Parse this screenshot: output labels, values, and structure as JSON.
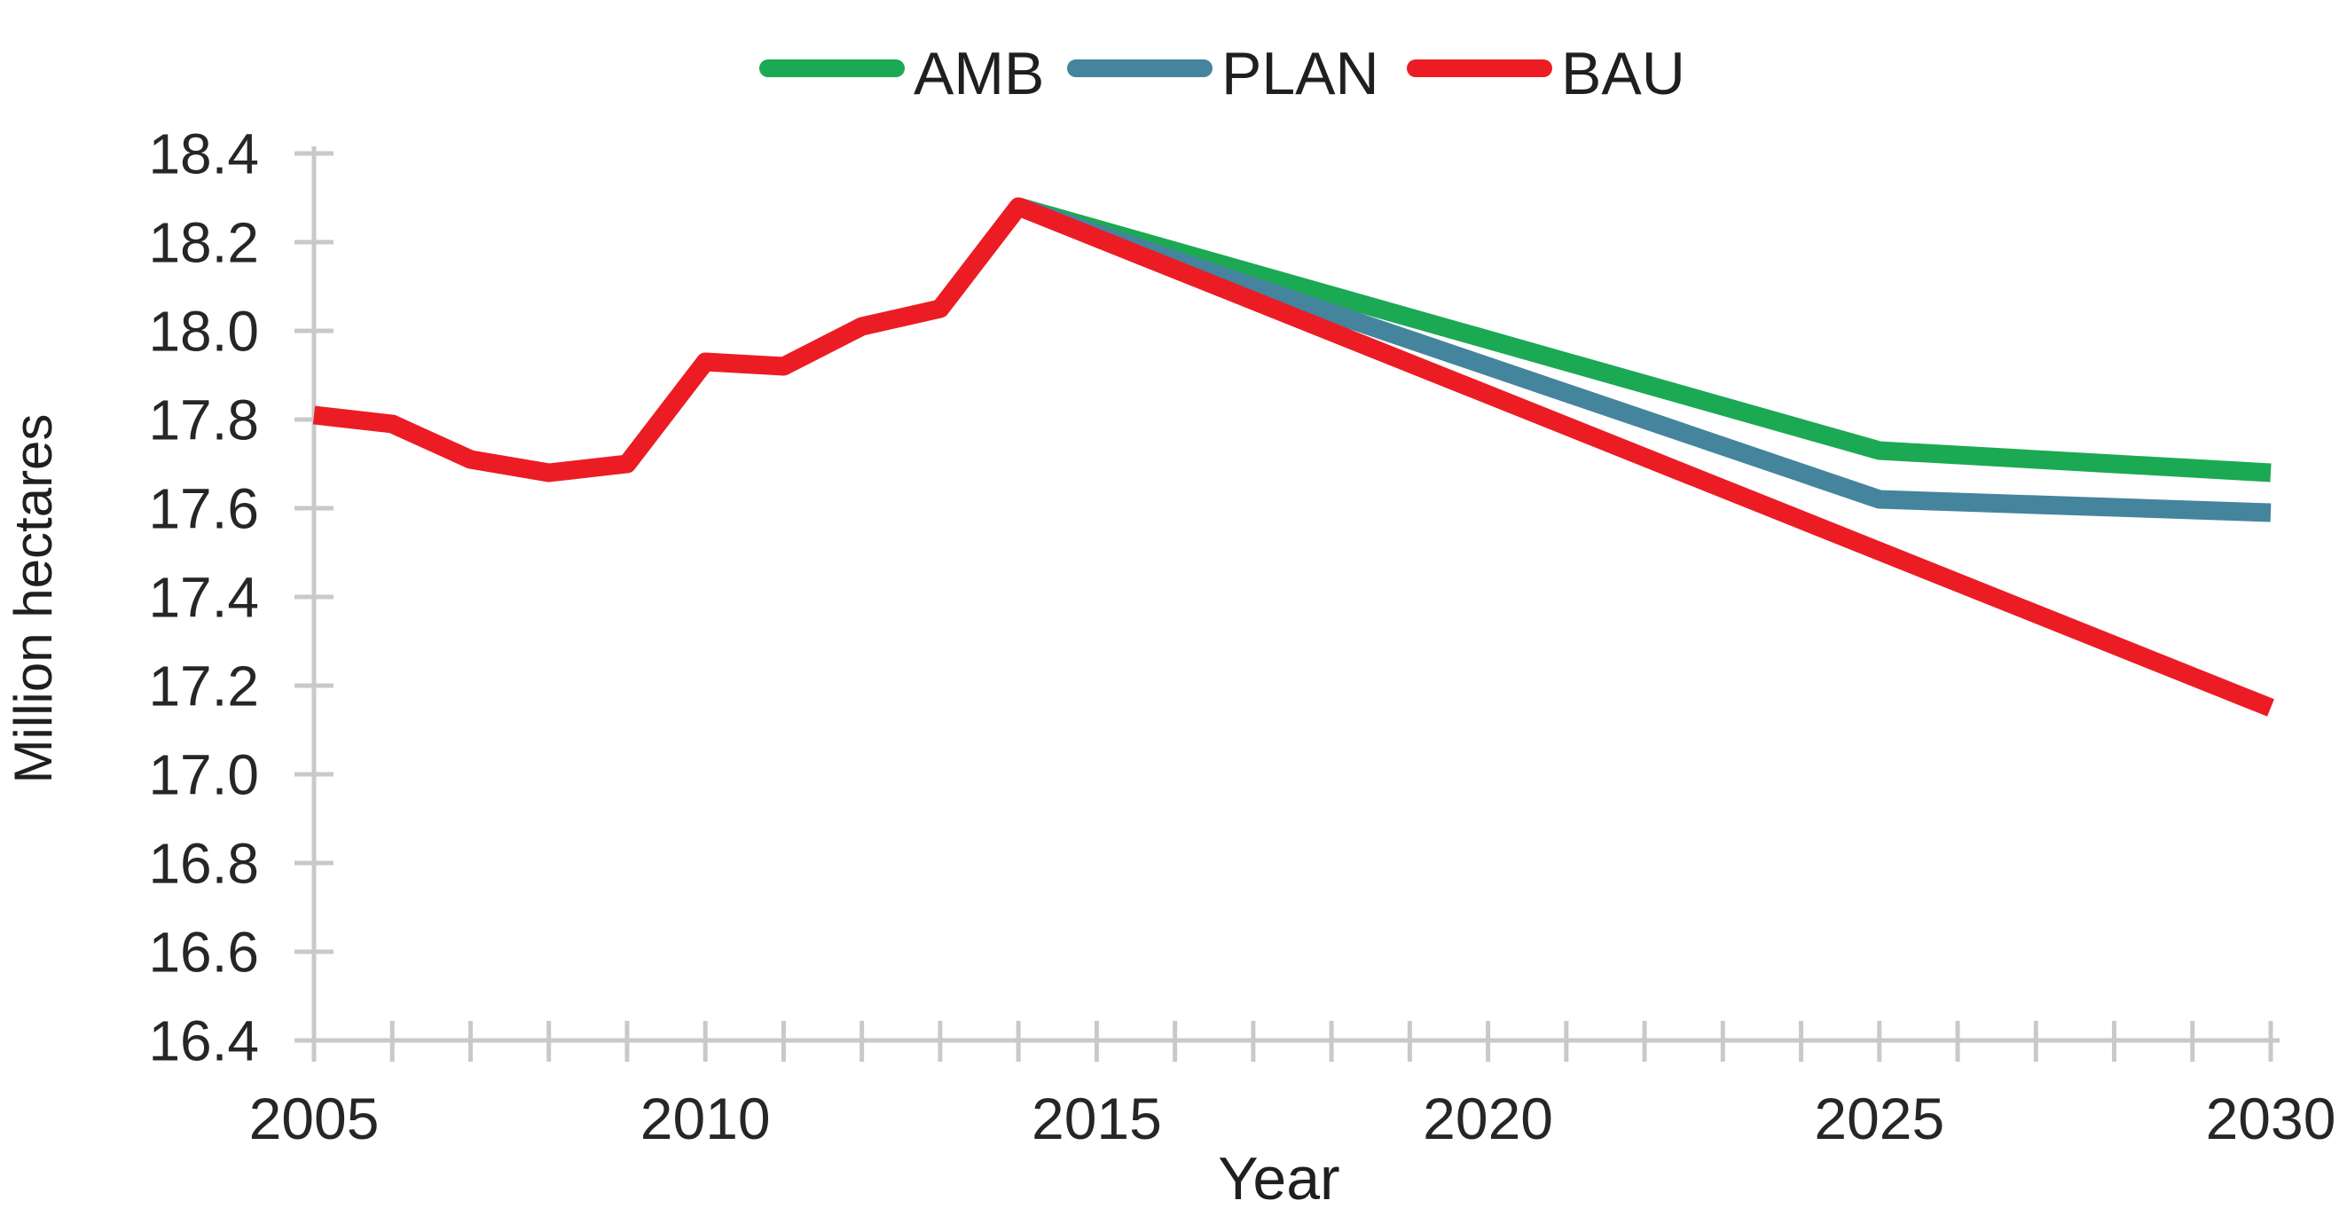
{
  "chart_data": {
    "type": "line",
    "title": "",
    "xlabel": "Year",
    "ylabel": "Million hectares",
    "xlim": [
      2005,
      2030
    ],
    "ylim": [
      16.4,
      18.4
    ],
    "x_tick_interval_years": 1,
    "x_labeled_ticks": [
      "2005",
      "2010",
      "2015",
      "2020",
      "2025",
      "2030"
    ],
    "x_labeled_tick_years": [
      2005,
      2010,
      2015,
      2020,
      2025,
      2030
    ],
    "y_ticks": [
      18.4,
      18.2,
      18.0,
      17.8,
      17.6,
      17.4,
      17.2,
      17.0,
      16.8,
      16.6,
      16.4
    ],
    "y_tick_labels": [
      "18.4",
      "18.2",
      "18.0",
      "17.8",
      "17.6",
      "17.4",
      "17.2",
      "17.0",
      "16.8",
      "16.6",
      "16.4"
    ],
    "grid": false,
    "legend_position": "top",
    "axis_color": "#C9C9C9",
    "text_color": "#262626",
    "series": [
      {
        "name": "AMB",
        "color": "#1CA953",
        "points": [
          [
            2014,
            18.28
          ],
          [
            2025,
            17.73
          ],
          [
            2030,
            17.68
          ]
        ]
      },
      {
        "name": "PLAN",
        "color": "#45849D",
        "points": [
          [
            2014,
            18.28
          ],
          [
            2025,
            17.62
          ],
          [
            2030,
            17.59
          ]
        ]
      },
      {
        "name": "BAU",
        "color": "#EC1C24",
        "points": [
          [
            2005,
            17.81
          ],
          [
            2006,
            17.79
          ],
          [
            2007,
            17.71
          ],
          [
            2008,
            17.68
          ],
          [
            2009,
            17.7
          ],
          [
            2010,
            17.93
          ],
          [
            2011,
            17.92
          ],
          [
            2012,
            18.01
          ],
          [
            2013,
            18.05
          ],
          [
            2014,
            18.28
          ],
          [
            2030,
            17.15
          ]
        ]
      }
    ]
  }
}
